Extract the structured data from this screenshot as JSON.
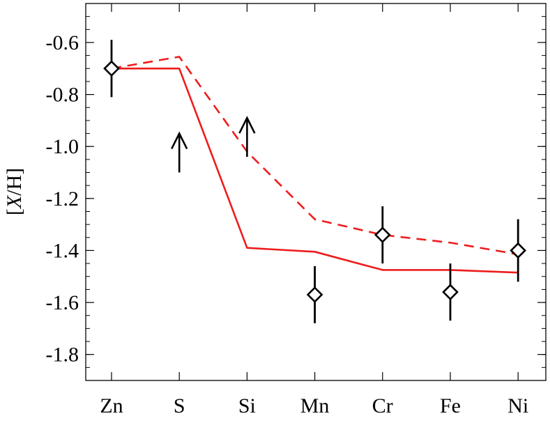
{
  "chart_data": {
    "type": "line",
    "xlabel": "",
    "ylabel_parts": [
      "[",
      "X",
      "/H]"
    ],
    "categories": [
      "Zn",
      "S",
      "Si",
      "Mn",
      "Cr",
      "Fe",
      "Ni"
    ],
    "ylim": [
      -1.9,
      -0.45
    ],
    "y_ticks": [
      -1.8,
      -1.6,
      -1.4,
      -1.2,
      -1.0,
      -0.8,
      -0.6
    ],
    "y_tick_labels": [
      "-1.8",
      "-1.6",
      "-1.4",
      "-1.2",
      "-1.0",
      "-0.8",
      "-0.6"
    ],
    "y_minor_step": 0.05,
    "grid": false,
    "series": [
      {
        "style": "solid",
        "color": "#ee1c1c",
        "values": [
          -0.7,
          -0.7,
          -1.39,
          -1.405,
          -1.475,
          -1.475,
          -1.485
        ]
      },
      {
        "style": "dashed",
        "color": "#ee1c1c",
        "values": [
          -0.7,
          -0.655,
          -1.02,
          -1.28,
          -1.34,
          -1.37,
          -1.415
        ]
      }
    ],
    "measurements": [
      {
        "category": "Zn",
        "value": -0.7,
        "err_low": 0.11,
        "err_high": 0.11
      },
      {
        "category": "Mn",
        "value": -1.57,
        "err_low": 0.11,
        "err_high": 0.11
      },
      {
        "category": "Cr",
        "value": -1.34,
        "err_low": 0.11,
        "err_high": 0.11
      },
      {
        "category": "Fe",
        "value": -1.56,
        "err_low": 0.11,
        "err_high": 0.11
      },
      {
        "category": "Ni",
        "value": -1.4,
        "err_low": 0.12,
        "err_high": 0.12
      }
    ],
    "lower_limits": [
      {
        "category": "S",
        "value": -1.1,
        "arrow_top": -0.95
      },
      {
        "category": "Si",
        "value": -1.04,
        "arrow_top": -0.89
      }
    ]
  }
}
